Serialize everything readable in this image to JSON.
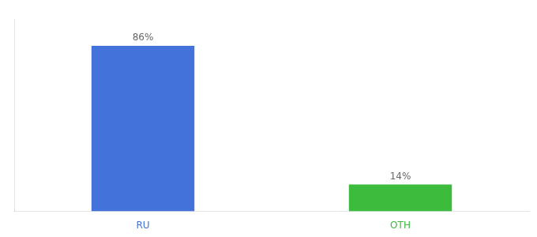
{
  "chart_data": {
    "type": "bar",
    "categories": [
      "RU",
      "OTH"
    ],
    "values": [
      86,
      14
    ],
    "value_labels": [
      "86%",
      "14%"
    ],
    "colors": [
      "#4472db",
      "#3dbb3d"
    ],
    "ylim": [
      0,
      100
    ],
    "grid": false,
    "data_labels": true,
    "tick_labels": "x"
  }
}
